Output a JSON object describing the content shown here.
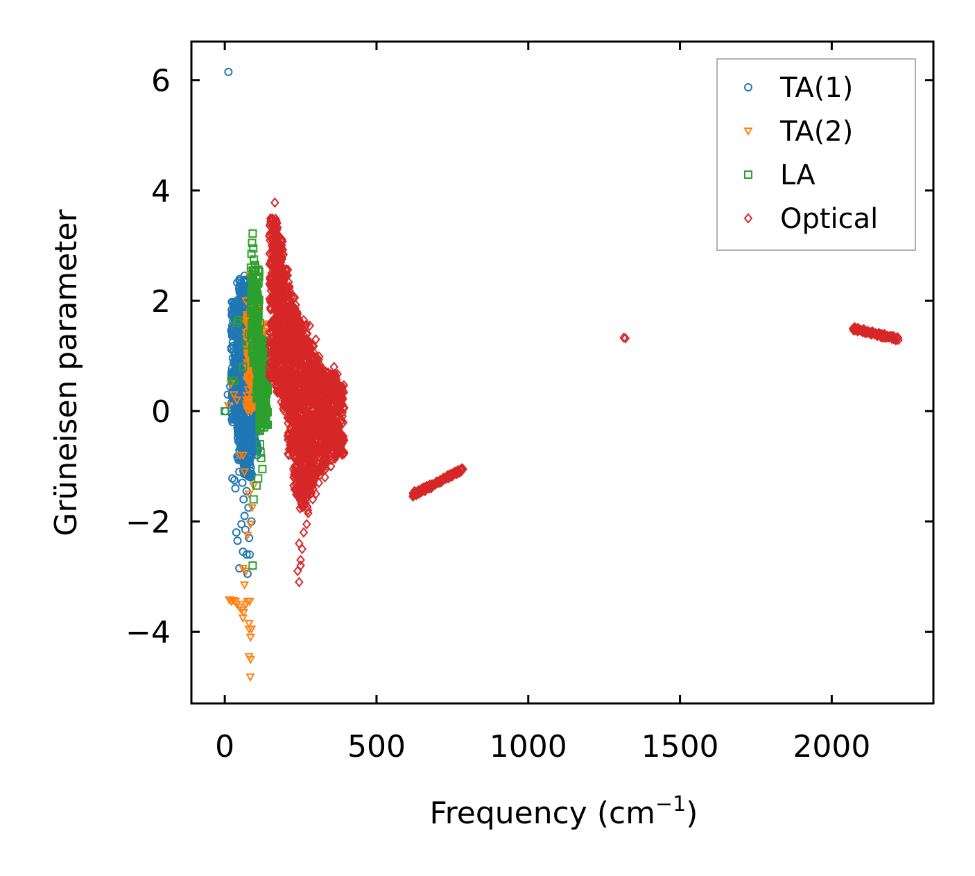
{
  "chart_data": {
    "type": "scatter",
    "title": "",
    "xlabel": "Frequency (cm",
    "xlabel_sup": "−1",
    "xlabel_close": ")",
    "ylabel": "Grüneisen parameter",
    "xlim": [
      -110,
      2335
    ],
    "ylim": [
      -5.3,
      6.7
    ],
    "xticks": [
      0,
      500,
      1000,
      1500,
      2000
    ],
    "xtick_labels": [
      "0",
      "500",
      "1000",
      "1500",
      "2000"
    ],
    "yticks": [
      6,
      4,
      2,
      0,
      -2,
      -4
    ],
    "ytick_labels": [
      "6",
      "4",
      "2",
      "0",
      "−2",
      "−4"
    ],
    "legend_position": "top-right",
    "grid": false,
    "series": [
      {
        "name": "TA(1)",
        "marker": "circle",
        "color": "#1f77b4",
        "points": [
          [
            12,
            6.15
          ],
          [
            2,
            0.0
          ],
          [
            10,
            0.3
          ],
          [
            18,
            0.45
          ],
          [
            22,
            1.15
          ],
          [
            25,
            -1.22
          ],
          [
            30,
            1.85
          ],
          [
            32,
            -1.25
          ],
          [
            35,
            -1.4
          ],
          [
            38,
            0.05
          ],
          [
            38,
            -2.2
          ],
          [
            40,
            1.6
          ],
          [
            42,
            0.8
          ],
          [
            42,
            -2.35
          ],
          [
            45,
            1.3
          ],
          [
            45,
            -0.55
          ],
          [
            48,
            -2.85
          ],
          [
            48,
            -1.1
          ],
          [
            50,
            1.7
          ],
          [
            50,
            0.1
          ],
          [
            52,
            -0.65
          ],
          [
            55,
            -2.05
          ],
          [
            55,
            1.45
          ],
          [
            58,
            -1.3
          ],
          [
            58,
            0.95
          ],
          [
            60,
            -2.55
          ],
          [
            60,
            1.1
          ],
          [
            62,
            -1.6
          ],
          [
            62,
            0.6
          ],
          [
            65,
            1.8
          ],
          [
            65,
            -0.3
          ],
          [
            65,
            -1.9
          ],
          [
            68,
            -2.15
          ],
          [
            68,
            -0.8
          ],
          [
            70,
            1.55
          ],
          [
            70,
            0.2
          ],
          [
            72,
            -2.6
          ],
          [
            72,
            -1.45
          ],
          [
            72,
            0.9
          ],
          [
            75,
            -2.95
          ],
          [
            75,
            1.25
          ],
          [
            75,
            -0.5
          ],
          [
            78,
            -1.75
          ],
          [
            78,
            0.45
          ],
          [
            80,
            -2.3
          ],
          [
            80,
            1.05
          ],
          [
            82,
            -0.9
          ],
          [
            82,
            -2.6
          ],
          [
            85,
            0.7
          ],
          [
            85,
            -1.2
          ],
          [
            88,
            -2.0
          ],
          [
            88,
            0.3
          ],
          [
            90,
            1.2
          ],
          [
            90,
            -0.4
          ],
          [
            95,
            0.5
          ],
          [
            100,
            -0.2
          ]
        ],
        "bands": [
          [
            35,
            -0.2,
            1.4,
            2.0
          ],
          [
            55,
            -0.9,
            1.65,
            2.4
          ],
          [
            75,
            -1.2,
            1.7,
            2.5
          ],
          [
            95,
            -0.8,
            1.3,
            2.0
          ],
          [
            115,
            -0.2,
            0.9,
            1.4
          ]
        ]
      },
      {
        "name": "TA(2)",
        "marker": "triangle-down",
        "color": "#ff7f0e",
        "points": [
          [
            15,
            -3.42
          ],
          [
            22,
            -3.45
          ],
          [
            28,
            -3.43
          ],
          [
            35,
            -3.45
          ],
          [
            40,
            -3.5
          ],
          [
            48,
            -3.55
          ],
          [
            55,
            -3.6
          ],
          [
            60,
            -3.75
          ],
          [
            62,
            -3.65
          ],
          [
            70,
            -3.5
          ],
          [
            75,
            -3.45
          ],
          [
            80,
            -3.85
          ],
          [
            82,
            -3.45
          ],
          [
            85,
            -4.1
          ],
          [
            88,
            -3.95
          ],
          [
            80,
            -4.45
          ],
          [
            85,
            -4.5
          ],
          [
            84,
            -4.82
          ],
          [
            80,
            -3.95
          ],
          [
            70,
            -2.9
          ],
          [
            65,
            -3.15
          ],
          [
            60,
            -2.85
          ],
          [
            75,
            -2.25
          ],
          [
            85,
            -2.05
          ],
          [
            90,
            -1.75
          ],
          [
            95,
            -1.35
          ],
          [
            80,
            -1.5
          ],
          [
            65,
            -1.1
          ],
          [
            50,
            -0.8
          ],
          [
            90,
            2.55
          ],
          [
            95,
            2.3
          ],
          [
            88,
            2.0
          ],
          [
            100,
            1.8
          ],
          [
            82,
            2.45
          ],
          [
            105,
            2.1
          ],
          [
            110,
            1.6
          ],
          [
            115,
            1.3
          ],
          [
            70,
            2.0
          ],
          [
            80,
            1.6
          ],
          [
            12,
            0.1
          ],
          [
            20,
            0.5
          ],
          [
            30,
            0.3
          ],
          [
            60,
            -0.8
          ],
          [
            40,
            0.2
          ]
        ],
        "bands": [
          [
            85,
            0.0,
            1.8,
            1.8
          ],
          [
            100,
            0.4,
            1.9,
            1.6
          ],
          [
            115,
            0.9,
            1.6,
            1.1
          ]
        ]
      },
      {
        "name": "LA",
        "marker": "square",
        "color": "#2ca02c",
        "points": [
          [
            92,
            3.22
          ],
          [
            90,
            3.05
          ],
          [
            94,
            2.95
          ],
          [
            88,
            2.85
          ],
          [
            96,
            2.75
          ],
          [
            100,
            2.65
          ],
          [
            92,
            2.55
          ],
          [
            86,
            2.6
          ],
          [
            104,
            2.4
          ],
          [
            98,
            2.3
          ],
          [
            108,
            2.1
          ],
          [
            112,
            1.9
          ],
          [
            116,
            1.6
          ],
          [
            120,
            1.3
          ],
          [
            124,
            1.0
          ],
          [
            126,
            0.7
          ],
          [
            124,
            0.3
          ],
          [
            120,
            0.0
          ],
          [
            118,
            -0.3
          ],
          [
            116,
            -0.6
          ],
          [
            118,
            -0.75
          ],
          [
            120,
            -0.85
          ],
          [
            124,
            -1.05
          ],
          [
            110,
            -1.22
          ],
          [
            105,
            -1.35
          ],
          [
            95,
            -1.6
          ],
          [
            92,
            -2.8
          ],
          [
            40,
            1.6
          ],
          [
            45,
            1.65
          ],
          [
            32,
            0.55
          ],
          [
            25,
            0.55
          ],
          [
            0,
            0.0
          ],
          [
            60,
            0.8
          ],
          [
            70,
            1.2
          ],
          [
            80,
            1.4
          ]
        ],
        "bands": [
          [
            100,
            0.8,
            2.2,
            2.6
          ],
          [
            118,
            0.2,
            1.5,
            1.4
          ],
          [
            128,
            -0.4,
            0.9,
            1.1
          ]
        ]
      },
      {
        "name": "Optical",
        "marker": "diamond",
        "color": "#d62728",
        "points": [
          [
            165,
            3.78
          ],
          [
            170,
            3.45
          ],
          [
            175,
            3.2
          ],
          [
            180,
            2.9
          ],
          [
            185,
            2.7
          ],
          [
            190,
            2.5
          ],
          [
            195,
            2.35
          ],
          [
            240,
            -2.9
          ],
          [
            245,
            -3.1
          ],
          [
            250,
            -2.7
          ],
          [
            255,
            -2.5
          ],
          [
            260,
            -2.2
          ],
          [
            245,
            -2.4
          ],
          [
            250,
            -2.8
          ],
          [
            270,
            -2.05
          ],
          [
            275,
            -1.85
          ],
          [
            290,
            -1.6
          ],
          [
            300,
            -1.5
          ],
          [
            310,
            -1.3
          ],
          [
            330,
            -1.2
          ],
          [
            350,
            -1.0
          ],
          [
            370,
            -0.8
          ],
          [
            385,
            -0.6
          ],
          [
            390,
            -0.45
          ],
          [
            380,
            0.0
          ],
          [
            370,
            0.5
          ],
          [
            360,
            0.8
          ],
          [
            340,
            0.7
          ],
          [
            300,
            1.3
          ],
          [
            280,
            1.55
          ],
          [
            260,
            1.65
          ],
          [
            240,
            1.75
          ],
          [
            220,
            1.9
          ],
          [
            1315,
            1.33
          ],
          [
            1320,
            1.32
          ],
          [
            780,
            -1.05
          ],
          [
            760,
            -1.1
          ],
          [
            740,
            -1.15
          ],
          [
            720,
            -1.25
          ],
          [
            700,
            -1.3
          ],
          [
            680,
            -1.4
          ],
          [
            660,
            -1.45
          ],
          [
            640,
            -1.5
          ],
          [
            625,
            -1.45
          ],
          [
            620,
            -1.55
          ]
        ],
        "bands": [
          [
            160,
            0.6,
            2.3,
            3.5
          ],
          [
            180,
            0.3,
            2.6,
            3.2
          ],
          [
            200,
            0.0,
            2.4,
            2.6
          ],
          [
            220,
            -0.8,
            1.9,
            2.1
          ],
          [
            240,
            -1.6,
            1.6,
            1.8
          ],
          [
            260,
            -1.8,
            1.5,
            1.6
          ],
          [
            280,
            -1.5,
            1.2,
            1.3
          ],
          [
            300,
            -1.2,
            1.0,
            0.9
          ],
          [
            320,
            -1.1,
            0.8,
            0.8
          ],
          [
            340,
            -1.0,
            0.6,
            0.7
          ],
          [
            360,
            -0.9,
            0.4,
            0.7
          ],
          [
            380,
            -0.8,
            0.0,
            0.5
          ]
        ],
        "lines": [
          [
            620,
            -1.52,
            785,
            -1.05
          ],
          [
            2070,
            1.5,
            2220,
            1.3
          ]
        ]
      }
    ]
  }
}
